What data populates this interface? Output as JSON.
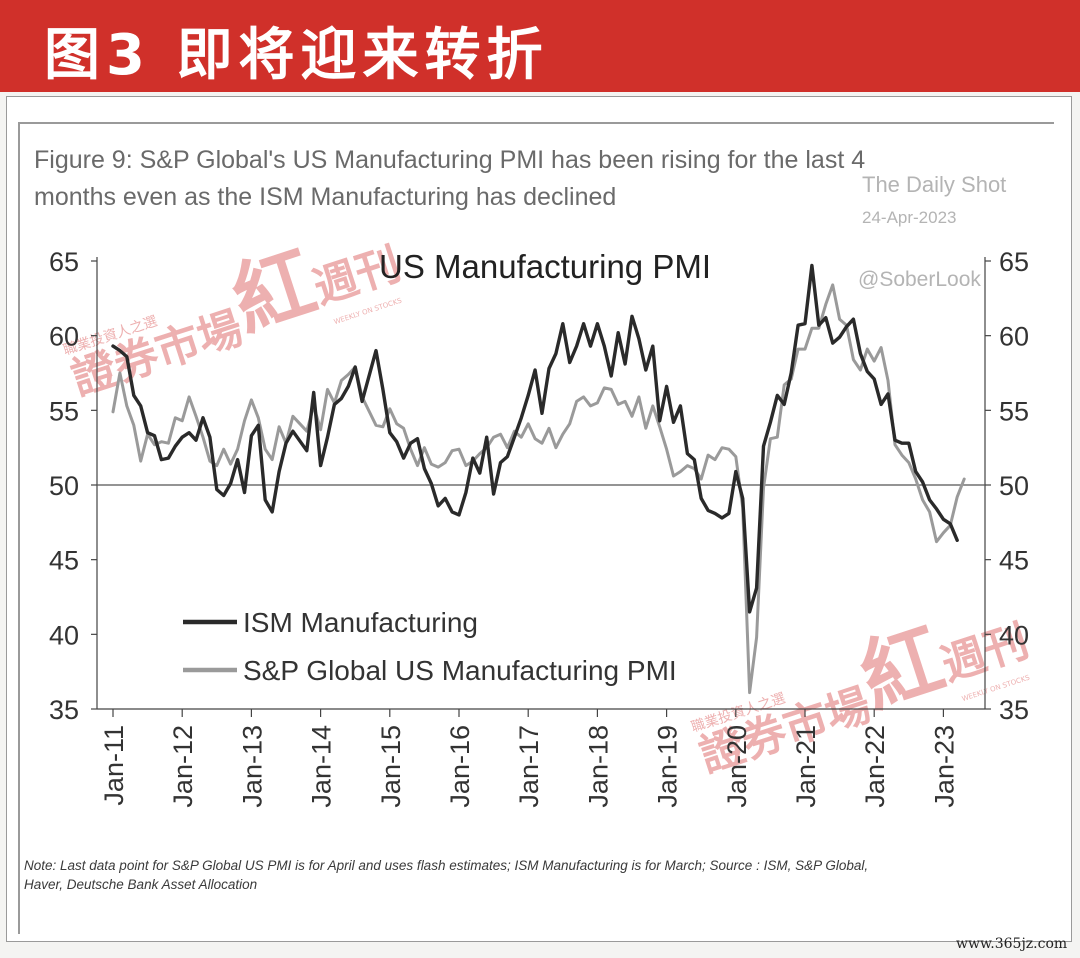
{
  "banner": {
    "title": "图3  即将迎来转折",
    "color": "#d0302a"
  },
  "figure": {
    "title_line1": "Figure 9: S&P Global's US Manufacturing PMI has been rising for the last 4",
    "title_line2": "months even as the ISM Manufacturing has declined",
    "source_tag": "The Daily Shot",
    "date_tag": "24-Apr-2023",
    "handle": "@SoberLook",
    "note_line1": "Note: Last data point for S&P Global US PMI is for April and uses flash estimates; ISM Manufacturing is for March; Source : ISM, S&P Global,",
    "note_line2": "Haver, Deutsche Bank Asset Allocation"
  },
  "watermark": {
    "text": "證券市場",
    "brand": "紅",
    "suffix": "週刊",
    "sub": "職業投資人之選",
    "sub_en": "WEEKLY ON STOCKS"
  },
  "site": "www.365jz.com",
  "chart_data": {
    "type": "line",
    "title": "US Manufacturing PMI",
    "ylim": [
      35,
      65
    ],
    "yticks": [
      65,
      60,
      55,
      50,
      45,
      40,
      35
    ],
    "reference_line": 50,
    "categories": [
      "Jan-11",
      "Jan-12",
      "Jan-13",
      "Jan-14",
      "Jan-15",
      "Jan-16",
      "Jan-17",
      "Jan-18",
      "Jan-19",
      "Jan-20",
      "Jan-21",
      "Jan-22",
      "Jan-23"
    ],
    "legend_position": "bottom-left",
    "grid": false,
    "series": [
      {
        "name": "ISM Manufacturing",
        "color": "#2a2a2a",
        "points": [
          [
            2011.0,
            59.3
          ],
          [
            2011.1,
            59.0
          ],
          [
            2011.2,
            58.6
          ],
          [
            2011.3,
            56.0
          ],
          [
            2011.4,
            55.3
          ],
          [
            2011.5,
            53.5
          ],
          [
            2011.6,
            53.3
          ],
          [
            2011.7,
            51.7
          ],
          [
            2011.8,
            51.8
          ],
          [
            2011.9,
            52.6
          ],
          [
            2012.0,
            53.2
          ],
          [
            2012.1,
            53.5
          ],
          [
            2012.2,
            53.0
          ],
          [
            2012.3,
            54.5
          ],
          [
            2012.4,
            53.2
          ],
          [
            2012.5,
            49.7
          ],
          [
            2012.6,
            49.3
          ],
          [
            2012.7,
            50.1
          ],
          [
            2012.8,
            51.7
          ],
          [
            2012.9,
            49.5
          ],
          [
            2013.0,
            53.3
          ],
          [
            2013.1,
            54.0
          ],
          [
            2013.2,
            49.0
          ],
          [
            2013.3,
            48.2
          ],
          [
            2013.4,
            50.9
          ],
          [
            2013.5,
            52.8
          ],
          [
            2013.6,
            53.6
          ],
          [
            2013.8,
            52.3
          ],
          [
            2013.9,
            56.2
          ],
          [
            2014.0,
            51.3
          ],
          [
            2014.1,
            53.2
          ],
          [
            2014.2,
            55.4
          ],
          [
            2014.3,
            55.8
          ],
          [
            2014.4,
            56.6
          ],
          [
            2014.5,
            57.9
          ],
          [
            2014.6,
            55.6
          ],
          [
            2014.8,
            59.0
          ],
          [
            2014.9,
            56.4
          ],
          [
            2015.0,
            53.5
          ],
          [
            2015.1,
            52.9
          ],
          [
            2015.2,
            51.8
          ],
          [
            2015.3,
            52.8
          ],
          [
            2015.4,
            53.1
          ],
          [
            2015.5,
            51.1
          ],
          [
            2015.6,
            50.1
          ],
          [
            2015.7,
            48.6
          ],
          [
            2015.8,
            49.1
          ],
          [
            2015.9,
            48.2
          ],
          [
            2016.0,
            48.0
          ],
          [
            2016.1,
            49.5
          ],
          [
            2016.2,
            51.8
          ],
          [
            2016.3,
            50.8
          ],
          [
            2016.4,
            53.2
          ],
          [
            2016.5,
            49.4
          ],
          [
            2016.6,
            51.5
          ],
          [
            2016.7,
            51.9
          ],
          [
            2016.8,
            53.2
          ],
          [
            2016.9,
            54.5
          ],
          [
            2017.0,
            56.0
          ],
          [
            2017.1,
            57.7
          ],
          [
            2017.2,
            54.8
          ],
          [
            2017.3,
            57.8
          ],
          [
            2017.4,
            58.8
          ],
          [
            2017.5,
            60.8
          ],
          [
            2017.6,
            58.2
          ],
          [
            2017.7,
            59.3
          ],
          [
            2017.8,
            60.8
          ],
          [
            2017.9,
            59.3
          ],
          [
            2018.0,
            60.8
          ],
          [
            2018.1,
            59.3
          ],
          [
            2018.2,
            57.3
          ],
          [
            2018.3,
            60.2
          ],
          [
            2018.4,
            58.1
          ],
          [
            2018.5,
            61.3
          ],
          [
            2018.6,
            59.8
          ],
          [
            2018.7,
            57.7
          ],
          [
            2018.8,
            59.3
          ],
          [
            2018.9,
            54.3
          ],
          [
            2019.0,
            56.6
          ],
          [
            2019.1,
            54.2
          ],
          [
            2019.2,
            55.3
          ],
          [
            2019.3,
            52.1
          ],
          [
            2019.4,
            51.7
          ],
          [
            2019.5,
            49.1
          ],
          [
            2019.6,
            48.3
          ],
          [
            2019.7,
            48.1
          ],
          [
            2019.8,
            47.8
          ],
          [
            2019.9,
            48.1
          ],
          [
            2020.0,
            50.9
          ],
          [
            2020.1,
            49.1
          ],
          [
            2020.2,
            41.5
          ],
          [
            2020.3,
            43.1
          ],
          [
            2020.4,
            52.6
          ],
          [
            2020.5,
            54.2
          ],
          [
            2020.6,
            56.0
          ],
          [
            2020.7,
            55.4
          ],
          [
            2020.8,
            57.5
          ],
          [
            2020.9,
            60.7
          ],
          [
            2021.0,
            60.8
          ],
          [
            2021.1,
            64.7
          ],
          [
            2021.2,
            60.7
          ],
          [
            2021.3,
            61.2
          ],
          [
            2021.4,
            59.5
          ],
          [
            2021.5,
            59.9
          ],
          [
            2021.6,
            60.6
          ],
          [
            2021.7,
            61.1
          ],
          [
            2021.8,
            58.8
          ],
          [
            2021.9,
            57.6
          ],
          [
            2022.0,
            57.1
          ],
          [
            2022.1,
            55.4
          ],
          [
            2022.2,
            56.1
          ],
          [
            2022.3,
            53.0
          ],
          [
            2022.4,
            52.8
          ],
          [
            2022.5,
            52.8
          ],
          [
            2022.6,
            50.9
          ],
          [
            2022.7,
            50.2
          ],
          [
            2022.8,
            49.0
          ],
          [
            2022.9,
            48.4
          ],
          [
            2023.0,
            47.7
          ],
          [
            2023.1,
            47.4
          ],
          [
            2023.2,
            46.3
          ]
        ]
      },
      {
        "name": "S&P Global US Manufacturing PMI",
        "color": "#9a9a9a",
        "points": [
          [
            2011.0,
            54.9
          ],
          [
            2011.1,
            57.5
          ],
          [
            2011.2,
            55.3
          ],
          [
            2011.3,
            54.0
          ],
          [
            2011.4,
            51.6
          ],
          [
            2011.5,
            53.4
          ],
          [
            2011.6,
            52.7
          ],
          [
            2011.7,
            52.9
          ],
          [
            2011.8,
            52.8
          ],
          [
            2011.9,
            54.5
          ],
          [
            2012.0,
            54.3
          ],
          [
            2012.1,
            55.9
          ],
          [
            2012.2,
            54.6
          ],
          [
            2012.3,
            53.2
          ],
          [
            2012.4,
            51.6
          ],
          [
            2012.5,
            51.3
          ],
          [
            2012.6,
            52.4
          ],
          [
            2012.7,
            51.4
          ],
          [
            2012.8,
            52.4
          ],
          [
            2012.9,
            54.3
          ],
          [
            2013.0,
            55.7
          ],
          [
            2013.1,
            54.5
          ],
          [
            2013.2,
            52.4
          ],
          [
            2013.3,
            51.7
          ],
          [
            2013.4,
            53.9
          ],
          [
            2013.5,
            52.8
          ],
          [
            2013.6,
            54.6
          ],
          [
            2013.8,
            53.6
          ],
          [
            2013.9,
            55.3
          ],
          [
            2014.0,
            53.7
          ],
          [
            2014.1,
            56.4
          ],
          [
            2014.2,
            55.5
          ],
          [
            2014.3,
            57.0
          ],
          [
            2014.4,
            57.4
          ],
          [
            2014.5,
            57.9
          ],
          [
            2014.6,
            55.9
          ],
          [
            2014.8,
            54.0
          ],
          [
            2014.9,
            53.9
          ],
          [
            2015.0,
            55.1
          ],
          [
            2015.1,
            54.1
          ],
          [
            2015.2,
            53.8
          ],
          [
            2015.3,
            52.4
          ],
          [
            2015.4,
            51.3
          ],
          [
            2015.5,
            52.5
          ],
          [
            2015.6,
            51.4
          ],
          [
            2015.7,
            51.2
          ],
          [
            2015.8,
            51.5
          ],
          [
            2015.9,
            52.3
          ],
          [
            2016.0,
            52.4
          ],
          [
            2016.1,
            51.3
          ],
          [
            2016.2,
            51.6
          ],
          [
            2016.3,
            52.1
          ],
          [
            2016.4,
            52.5
          ],
          [
            2016.5,
            53.2
          ],
          [
            2016.6,
            53.4
          ],
          [
            2016.7,
            52.5
          ],
          [
            2016.8,
            53.6
          ],
          [
            2016.9,
            53.2
          ],
          [
            2017.0,
            54.1
          ],
          [
            2017.1,
            53.1
          ],
          [
            2017.2,
            52.8
          ],
          [
            2017.3,
            53.8
          ],
          [
            2017.4,
            52.5
          ],
          [
            2017.5,
            53.4
          ],
          [
            2017.6,
            54.1
          ],
          [
            2017.7,
            55.6
          ],
          [
            2017.8,
            55.9
          ],
          [
            2017.9,
            55.3
          ],
          [
            2018.0,
            55.5
          ],
          [
            2018.1,
            56.5
          ],
          [
            2018.2,
            56.4
          ],
          [
            2018.3,
            55.4
          ],
          [
            2018.4,
            55.6
          ],
          [
            2018.5,
            54.6
          ],
          [
            2018.6,
            55.9
          ],
          [
            2018.7,
            53.8
          ],
          [
            2018.8,
            55.3
          ],
          [
            2018.9,
            53.9
          ],
          [
            2019.0,
            52.4
          ],
          [
            2019.1,
            50.6
          ],
          [
            2019.2,
            50.9
          ],
          [
            2019.3,
            51.3
          ],
          [
            2019.4,
            51.1
          ],
          [
            2019.5,
            50.4
          ],
          [
            2019.6,
            52.0
          ],
          [
            2019.7,
            51.7
          ],
          [
            2019.8,
            52.5
          ],
          [
            2019.9,
            52.4
          ],
          [
            2020.0,
            51.9
          ],
          [
            2020.1,
            48.5
          ],
          [
            2020.2,
            36.1
          ],
          [
            2020.3,
            39.8
          ],
          [
            2020.4,
            49.8
          ],
          [
            2020.5,
            53.1
          ],
          [
            2020.6,
            53.2
          ],
          [
            2020.7,
            56.7
          ],
          [
            2020.8,
            57.1
          ],
          [
            2020.9,
            59.1
          ],
          [
            2021.0,
            59.1
          ],
          [
            2021.1,
            60.5
          ],
          [
            2021.2,
            60.5
          ],
          [
            2021.3,
            62.1
          ],
          [
            2021.4,
            63.4
          ],
          [
            2021.5,
            61.1
          ],
          [
            2021.6,
            60.7
          ],
          [
            2021.7,
            58.4
          ],
          [
            2021.8,
            57.7
          ],
          [
            2021.9,
            59.1
          ],
          [
            2022.0,
            58.3
          ],
          [
            2022.1,
            59.2
          ],
          [
            2022.2,
            57.0
          ],
          [
            2022.3,
            52.7
          ],
          [
            2022.4,
            52.0
          ],
          [
            2022.5,
            51.5
          ],
          [
            2022.6,
            50.4
          ],
          [
            2022.7,
            49.0
          ],
          [
            2022.8,
            48.2
          ],
          [
            2022.9,
            46.2
          ],
          [
            2023.0,
            46.8
          ],
          [
            2023.1,
            47.3
          ],
          [
            2023.2,
            49.2
          ],
          [
            2023.3,
            50.4
          ]
        ]
      }
    ]
  }
}
